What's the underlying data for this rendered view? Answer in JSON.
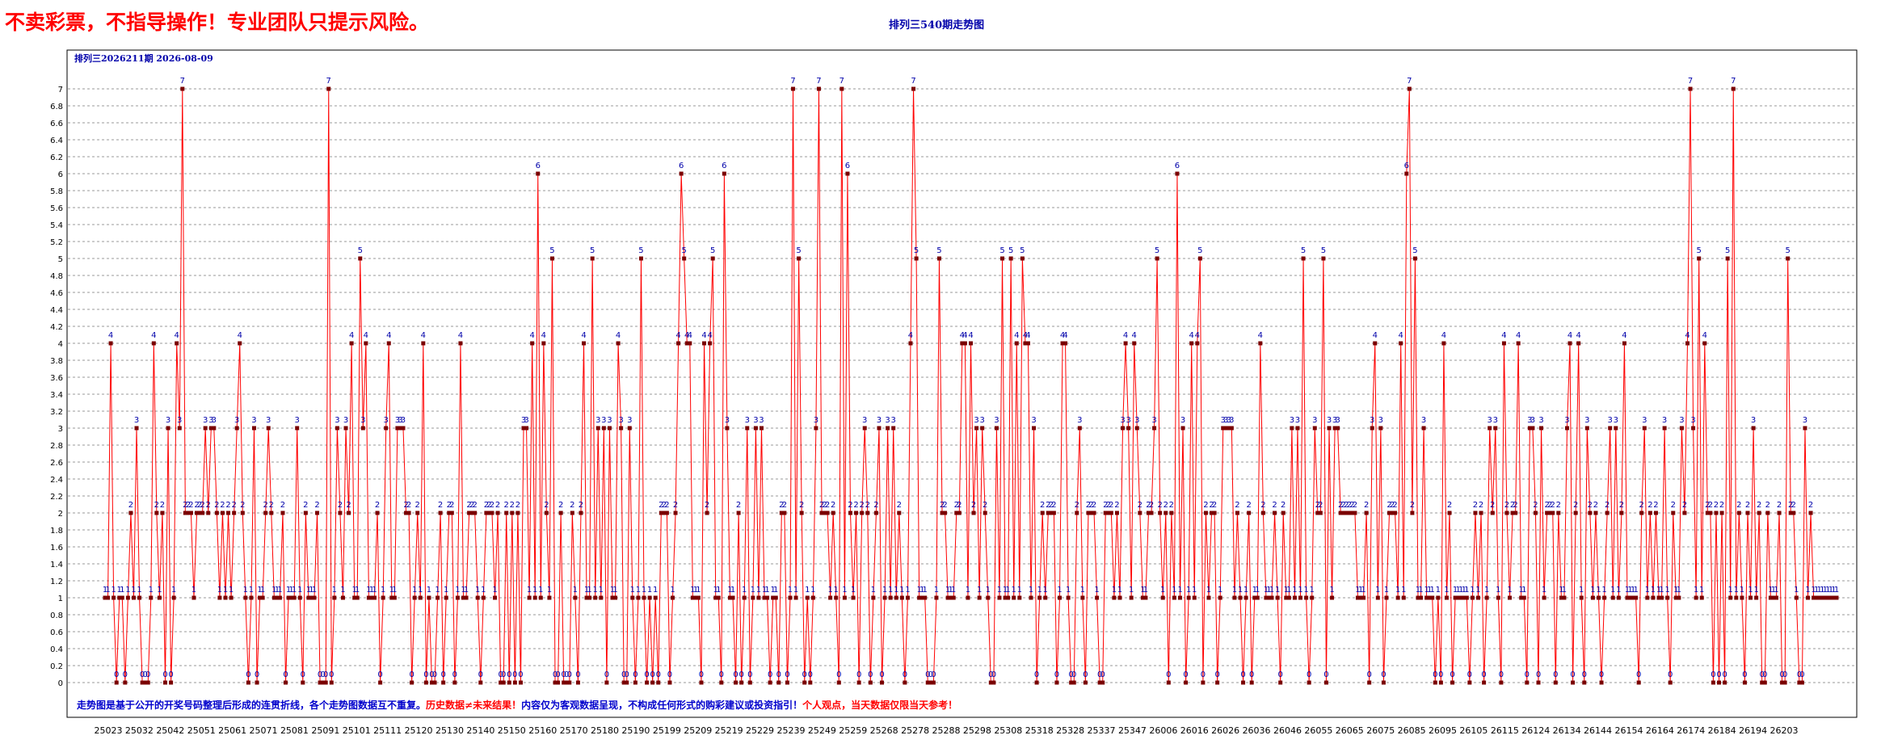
{
  "banner": "不卖彩票，不指导操作！专业团队只提示风险。",
  "title": "排列三540期走势图",
  "chart_data": {
    "type": "line",
    "series_label": "排列三2026211期  2026-08-09",
    "footnote": [
      {
        "text": "走势图是基于公开的开奖号码整理后形成的连贯折线，各个走势图数据互不重复。",
        "color": "#0000cc"
      },
      {
        "text": "历史数据≠未来结果！",
        "color": "#ff0000"
      },
      {
        "text": "内容仅为客观数据呈现，不构成任何形式的购彩建议或投资指引！",
        "color": "#0000cc"
      },
      {
        "text": "个人观点，当天数据仅限当天参考！",
        "color": "#ff0000"
      }
    ],
    "ylim": [
      0,
      7
    ],
    "y_step": 0.2,
    "x_tick_labels": [
      "25023",
      "25032",
      "25042",
      "25051",
      "25061",
      "25071",
      "25081",
      "25091",
      "25101",
      "25111",
      "25120",
      "25130",
      "25140",
      "25150",
      "25160",
      "25170",
      "25180",
      "25190",
      "25199",
      "25209",
      "25219",
      "25229",
      "25239",
      "25249",
      "25259",
      "25268",
      "25278",
      "25288",
      "25298",
      "25308",
      "25318",
      "25328",
      "25337",
      "25347",
      "26006",
      "26016",
      "26026",
      "26036",
      "26046",
      "26055",
      "26065",
      "26075",
      "26085",
      "26095",
      "26105",
      "26115",
      "26124",
      "26134",
      "26144",
      "26154",
      "26164",
      "26174",
      "26184",
      "26194",
      "26203"
    ],
    "values": [
      1,
      1,
      4,
      1,
      0,
      1,
      1,
      0,
      1,
      2,
      1,
      3,
      1,
      0,
      0,
      0,
      1,
      4,
      2,
      1,
      2,
      0,
      3,
      0,
      1,
      4,
      3,
      7,
      2,
      2,
      2,
      1,
      2,
      2,
      2,
      3,
      2,
      3,
      3,
      2,
      1,
      2,
      1,
      2,
      1,
      2,
      3,
      4,
      2,
      1,
      0,
      1,
      3,
      0,
      1,
      1,
      2,
      3,
      2,
      1,
      1,
      1,
      2,
      0,
      1,
      1,
      1,
      3,
      1,
      0,
      2,
      1,
      1,
      1,
      2,
      0,
      0,
      0,
      7,
      0,
      1,
      3,
      2,
      1,
      3,
      2,
      4,
      1,
      1,
      5,
      3,
      4,
      1,
      1,
      1,
      2,
      0,
      1,
      3,
      4,
      1,
      1,
      3,
      3,
      3,
      2,
      2,
      0,
      1,
      2,
      1,
      4,
      0,
      1,
      0,
      0,
      1,
      2,
      0,
      1,
      2,
      2,
      0,
      1,
      4,
      1,
      1,
      2,
      2,
      2,
      1,
      0,
      1,
      2,
      2,
      2,
      1,
      2,
      0,
      0,
      2,
      0,
      2,
      0,
      2,
      0,
      3,
      3,
      1,
      4,
      1,
      6,
      1,
      4,
      2,
      1,
      5,
      0,
      0,
      2,
      0,
      0,
      0,
      2,
      1,
      0,
      2,
      4,
      1,
      1,
      5,
      1,
      3,
      1,
      3,
      0,
      3,
      1,
      1,
      4,
      3,
      0,
      0,
      3,
      1,
      0,
      1,
      5,
      1,
      0,
      1,
      0,
      1,
      0,
      2,
      2,
      2,
      0,
      1,
      2,
      4,
      6,
      5,
      4,
      4,
      1,
      1,
      1,
      0,
      4,
      2,
      4,
      5,
      1,
      1,
      0,
      6,
      3,
      1,
      1,
      0,
      2,
      0,
      1,
      3,
      0,
      1,
      3,
      1,
      3,
      1,
      1,
      0,
      1,
      1,
      0,
      2,
      2,
      0,
      1,
      7,
      1,
      5,
      2,
      0,
      1,
      0,
      1,
      3,
      7,
      2,
      2,
      2,
      1,
      2,
      1,
      0,
      7,
      1,
      6,
      2,
      1,
      2,
      0,
      2,
      3,
      2,
      0,
      1,
      2,
      3,
      0,
      1,
      3,
      1,
      3,
      1,
      2,
      1,
      0,
      1,
      4,
      7,
      5,
      1,
      1,
      1,
      0,
      0,
      0,
      1,
      5,
      2,
      2,
      1,
      1,
      1,
      2,
      2,
      4,
      4,
      1,
      4,
      2,
      3,
      1,
      3,
      2,
      1,
      0,
      0,
      3,
      1,
      5,
      1,
      1,
      5,
      1,
      4,
      1,
      5,
      4,
      4,
      1,
      3,
      0,
      1,
      2,
      1,
      2,
      2,
      2,
      0,
      1,
      4,
      4,
      1,
      0,
      0,
      2,
      3,
      1,
      0,
      2,
      2,
      2,
      1,
      0,
      0,
      2,
      2,
      2,
      1,
      2,
      1,
      3,
      4,
      3,
      1,
      4,
      3,
      2,
      1,
      1,
      2,
      2,
      3,
      5,
      2,
      1,
      2,
      0,
      2,
      1,
      6,
      1,
      3,
      0,
      1,
      4,
      1,
      4,
      5,
      0,
      2,
      1,
      2,
      2,
      0,
      1,
      3,
      3,
      3,
      3,
      1,
      2,
      1,
      0,
      1,
      2,
      0,
      1,
      1,
      4,
      2,
      1,
      1,
      1,
      2,
      1,
      0,
      2,
      1,
      1,
      3,
      1,
      3,
      1,
      5,
      1,
      0,
      1,
      3,
      2,
      2,
      5,
      0,
      3,
      1,
      3,
      3,
      2,
      2,
      2,
      2,
      2,
      2,
      1,
      1,
      1,
      2,
      0,
      3,
      4,
      1,
      3,
      0,
      1,
      2,
      2,
      2,
      1,
      4,
      1,
      6,
      7,
      2,
      5,
      1,
      1,
      3,
      1,
      1,
      1,
      0,
      1,
      0,
      4,
      1,
      2,
      0,
      1,
      1,
      1,
      1,
      1,
      0,
      1,
      2,
      1,
      2,
      0,
      1,
      3,
      2,
      3,
      1,
      0,
      4,
      2,
      1,
      2,
      2,
      4,
      1,
      1,
      0,
      3,
      3,
      2,
      0,
      3,
      1,
      2,
      2,
      2,
      0,
      2,
      1,
      1,
      3,
      4,
      0,
      2,
      4,
      1,
      0,
      3,
      2,
      1,
      2,
      1,
      0,
      1,
      2,
      3,
      1,
      3,
      1,
      2,
      4,
      1,
      1,
      1,
      1,
      0,
      2,
      3,
      1,
      2,
      1,
      2,
      1,
      1,
      3,
      1,
      0,
      2,
      1,
      1,
      3,
      2,
      4,
      7,
      3,
      1,
      5,
      1,
      4,
      2,
      2,
      0,
      2,
      0,
      2,
      0,
      5,
      1,
      7,
      1,
      2,
      1,
      0,
      2,
      1,
      3,
      1,
      2,
      0,
      0,
      2,
      1,
      1,
      1,
      2,
      0,
      0,
      5,
      2,
      2,
      1,
      0,
      0,
      3,
      1,
      2,
      1,
      1,
      1,
      1,
      1,
      1,
      1,
      1,
      1
    ]
  }
}
